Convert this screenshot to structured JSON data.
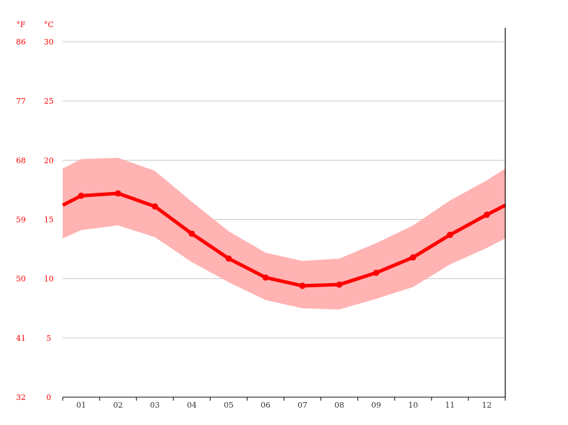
{
  "chart_data": {
    "type": "line",
    "title": "",
    "xlabel": "",
    "ylabel": "",
    "unit_labels": {
      "fahrenheit": "°F",
      "celsius": "°C"
    },
    "categories": [
      "01",
      "02",
      "03",
      "04",
      "05",
      "06",
      "07",
      "08",
      "09",
      "10",
      "11",
      "12"
    ],
    "series": [
      {
        "name": "Average temperature (°C)",
        "values": [
          17.0,
          17.2,
          16.1,
          13.8,
          11.7,
          10.1,
          9.4,
          9.5,
          10.5,
          11.8,
          13.7,
          15.4
        ],
        "color": "#ff0000"
      },
      {
        "name": "Maximum temperature (°C)",
        "values": [
          20.1,
          20.2,
          19.1,
          16.5,
          14.0,
          12.2,
          11.5,
          11.7,
          13.0,
          14.5,
          16.6,
          18.3
        ],
        "color": "#ffb3b3"
      },
      {
        "name": "Minimum temperature (°C)",
        "values": [
          14.1,
          14.5,
          13.5,
          11.4,
          9.7,
          8.2,
          7.5,
          7.4,
          8.3,
          9.3,
          11.2,
          12.6
        ],
        "color": "#ffb3b3"
      }
    ],
    "edge_values": {
      "left": {
        "mean": 16.2,
        "max": 19.3,
        "min": 13.4
      },
      "right": {
        "mean": 16.2,
        "max": 19.3,
        "min": 13.4
      }
    },
    "y_ticks_celsius": [
      0,
      5,
      10,
      15,
      20,
      25,
      30
    ],
    "y_ticks_fahrenheit": [
      32,
      41,
      50,
      59,
      68,
      77,
      86
    ],
    "ylim": [
      0,
      30
    ],
    "grid": true,
    "legend": "none"
  },
  "colors": {
    "line": "#ff0000",
    "band": "#ffb3b3",
    "grid": "#c8c8c8",
    "axis": "#000000",
    "ylabel": "#ff0000",
    "xlabel": "#333333"
  }
}
